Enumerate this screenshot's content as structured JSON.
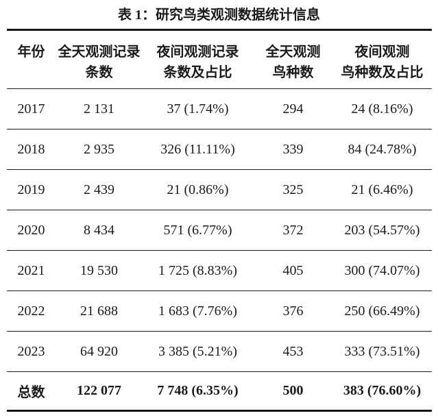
{
  "title": "表 1：研究鸟类观测数据统计信息",
  "colors": {
    "background": "#ffffff",
    "text": "#1b1b1b",
    "rule": "#161616"
  },
  "table": {
    "headers": [
      {
        "line1": "年份",
        "line2": ""
      },
      {
        "line1": "全天观测记录",
        "line2": "条数"
      },
      {
        "line1": "夜间观测记录",
        "line2": "条数及占比"
      },
      {
        "line1": "全天观测",
        "line2": "鸟种数"
      },
      {
        "line1": "夜间观测",
        "line2": "鸟种数及占比"
      }
    ],
    "rows": [
      {
        "year": "2017",
        "day_records": "2 131",
        "night_records": "37 (1.74%)",
        "day_species": "294",
        "night_species": "24 (8.16%)"
      },
      {
        "year": "2018",
        "day_records": "2 935",
        "night_records": "326 (11.11%)",
        "day_species": "339",
        "night_species": "84 (24.78%)"
      },
      {
        "year": "2019",
        "day_records": "2 439",
        "night_records": "21 (0.86%)",
        "day_species": "325",
        "night_species": "21 (6.46%)"
      },
      {
        "year": "2020",
        "day_records": "8 434",
        "night_records": "571 (6.77%)",
        "day_species": "372",
        "night_species": "203 (54.57%)"
      },
      {
        "year": "2021",
        "day_records": "19 530",
        "night_records": "1 725 (8.83%)",
        "day_species": "405",
        "night_species": "300 (74.07%)"
      },
      {
        "year": "2022",
        "day_records": "21 688",
        "night_records": "1 683 (7.76%)",
        "day_species": "376",
        "night_species": "250 (66.49%)"
      },
      {
        "year": "2023",
        "day_records": "64 920",
        "night_records": "3 385 (5.21%)",
        "day_species": "453",
        "night_species": "333 (73.51%)"
      }
    ],
    "total": {
      "year": "总数",
      "day_records": "122 077",
      "night_records": "7 748 (6.35%)",
      "day_species": "500",
      "night_species": "383 (76.60%)"
    }
  }
}
